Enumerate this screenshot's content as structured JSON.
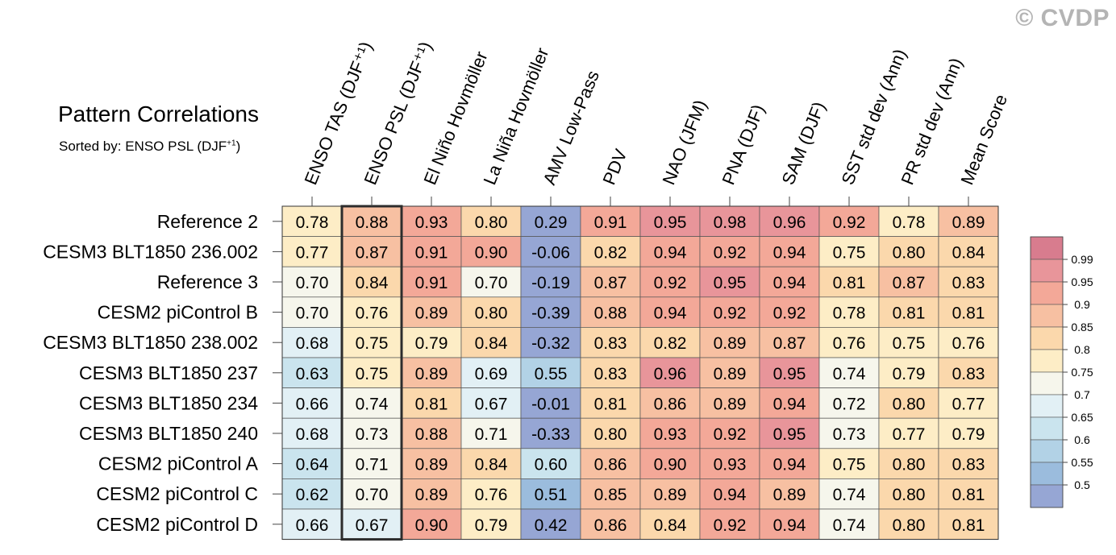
{
  "watermark": "© CVDP",
  "chart_data": {
    "type": "heatmap",
    "title": "Pattern Correlations",
    "subtitle": "Sorted by: ENSO PSL (DJF⁺¹)",
    "subtitle_parts": {
      "text": "Sorted by: ENSO PSL (DJF",
      "sup": "+1",
      "close": ")"
    },
    "columns": [
      "ENSO TAS (DJF⁺¹)",
      "ENSO PSL (DJF⁺¹)",
      "El Niño Hovmöller",
      "La Niña Hovmöller",
      "AMV Low-Pass",
      "PDV",
      "NAO (JFM)",
      "PNA (DJF)",
      "SAM (DJF)",
      "SST std dev (Ann)",
      "PR std dev (Ann)",
      "Mean Score"
    ],
    "rows": [
      "Reference 2",
      "CESM3 BLT1850 236.002",
      "Reference 3",
      "CESM2 piControl B",
      "CESM3 BLT1850 238.002",
      "CESM3 BLT1850 237",
      "CESM3 BLT1850 234",
      "CESM3 BLT1850 240",
      "CESM2 piControl A",
      "CESM2 piControl C",
      "CESM2 piControl D"
    ],
    "values": [
      [
        "0.78",
        "0.88",
        "0.93",
        "0.80",
        "0.29",
        "0.91",
        "0.95",
        "0.98",
        "0.96",
        "0.92",
        "0.78",
        "0.89"
      ],
      [
        "0.77",
        "0.87",
        "0.91",
        "0.90",
        "-0.06",
        "0.82",
        "0.94",
        "0.92",
        "0.94",
        "0.75",
        "0.80",
        "0.84"
      ],
      [
        "0.70",
        "0.84",
        "0.91",
        "0.70",
        "-0.19",
        "0.87",
        "0.92",
        "0.95",
        "0.94",
        "0.81",
        "0.87",
        "0.83"
      ],
      [
        "0.70",
        "0.76",
        "0.89",
        "0.80",
        "-0.39",
        "0.88",
        "0.94",
        "0.92",
        "0.92",
        "0.78",
        "0.81",
        "0.81"
      ],
      [
        "0.68",
        "0.75",
        "0.79",
        "0.84",
        "-0.32",
        "0.83",
        "0.82",
        "0.89",
        "0.87",
        "0.76",
        "0.75",
        "0.76"
      ],
      [
        "0.63",
        "0.75",
        "0.89",
        "0.69",
        "0.55",
        "0.83",
        "0.96",
        "0.89",
        "0.95",
        "0.74",
        "0.79",
        "0.83"
      ],
      [
        "0.66",
        "0.74",
        "0.81",
        "0.67",
        "-0.01",
        "0.81",
        "0.86",
        "0.89",
        "0.94",
        "0.72",
        "0.80",
        "0.77"
      ],
      [
        "0.68",
        "0.73",
        "0.88",
        "0.71",
        "-0.33",
        "0.80",
        "0.93",
        "0.92",
        "0.95",
        "0.73",
        "0.77",
        "0.79"
      ],
      [
        "0.64",
        "0.71",
        "0.89",
        "0.84",
        "0.60",
        "0.86",
        "0.90",
        "0.93",
        "0.94",
        "0.75",
        "0.80",
        "0.83"
      ],
      [
        "0.62",
        "0.70",
        "0.89",
        "0.76",
        "0.51",
        "0.85",
        "0.89",
        "0.94",
        "0.89",
        "0.74",
        "0.80",
        "0.81"
      ],
      [
        "0.66",
        "0.67",
        "0.90",
        "0.79",
        "0.42",
        "0.86",
        "0.84",
        "0.92",
        "0.94",
        "0.74",
        "0.80",
        "0.81"
      ]
    ],
    "highlighted_column": "ENSO PSL (DJF⁺¹)",
    "colorbar": {
      "levels": [
        "0.99",
        "0.95",
        "0.9",
        "0.85",
        "0.8",
        "0.75",
        "0.7",
        "0.65",
        "0.6",
        "0.55",
        "0.5"
      ],
      "colors": [
        "#d87c8e",
        "#e8959a",
        "#f3a898",
        "#f7c0a2",
        "#fbd8ac",
        "#fdedc6",
        "#f6f6ec",
        "#e2f0f5",
        "#cae4ee",
        "#b2d2e6",
        "#9bbcdd",
        "#96a6d4"
      ]
    },
    "color_scale": {
      "bins": [
        0.5,
        0.55,
        0.6,
        0.65,
        0.7,
        0.75,
        0.8,
        0.85,
        0.9,
        0.95,
        0.99
      ],
      "colors": [
        "#96a6d4",
        "#9bbcdd",
        "#b2d2e6",
        "#cae4ee",
        "#e2f0f5",
        "#f6f6ec",
        "#fdedc6",
        "#fbd8ac",
        "#f7c0a2",
        "#f3a898",
        "#e8959a",
        "#d87c8e"
      ]
    }
  }
}
